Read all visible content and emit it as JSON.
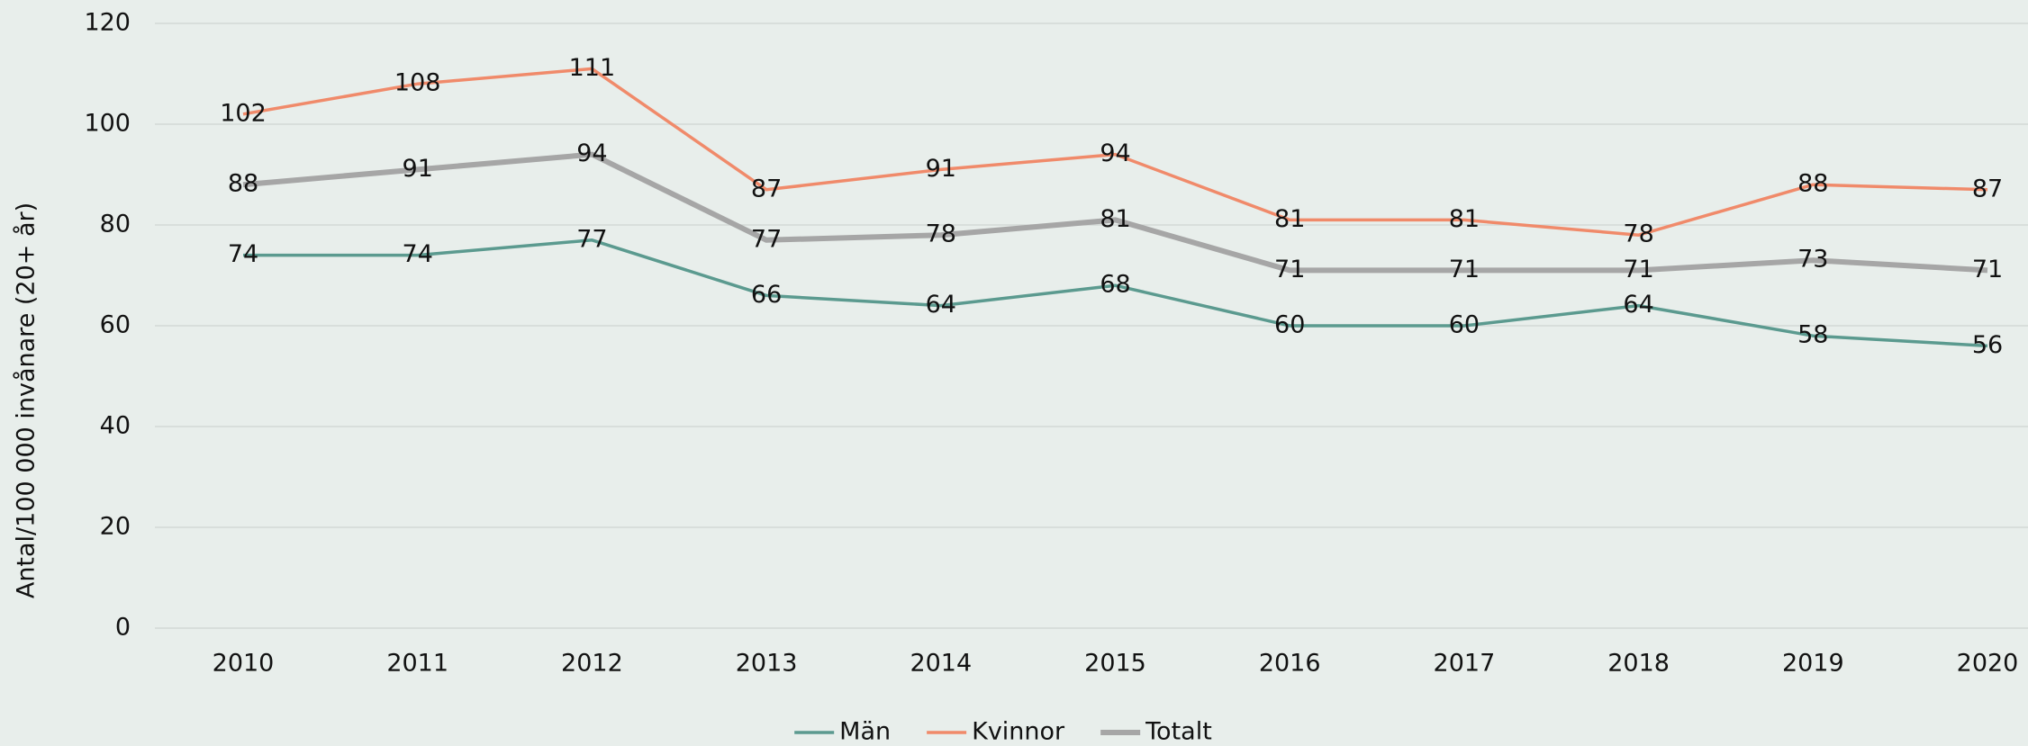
{
  "chart_data": {
    "type": "line",
    "y_axis_label": "Antal/100 000 invånare (20+ år)",
    "categories": [
      "2010",
      "2011",
      "2012",
      "2013",
      "2014",
      "2015",
      "2016",
      "2017",
      "2018",
      "2019",
      "2020"
    ],
    "series": [
      {
        "name": "Män",
        "color": "#5b9a8f",
        "values": [
          74,
          74,
          77,
          66,
          64,
          68,
          60,
          60,
          64,
          58,
          56
        ]
      },
      {
        "name": "Kvinnor",
        "color": "#f08a6a",
        "values": [
          102,
          108,
          111,
          87,
          91,
          94,
          81,
          81,
          78,
          88,
          87
        ]
      },
      {
        "name": "Totalt",
        "color": "#a6a6a6",
        "values": [
          88,
          91,
          94,
          77,
          78,
          81,
          71,
          71,
          71,
          73,
          71
        ]
      }
    ],
    "ylim": [
      0,
      120
    ],
    "yticks": [
      0,
      20,
      40,
      60,
      80,
      100,
      120
    ],
    "grid": true,
    "legend": "bottom"
  }
}
